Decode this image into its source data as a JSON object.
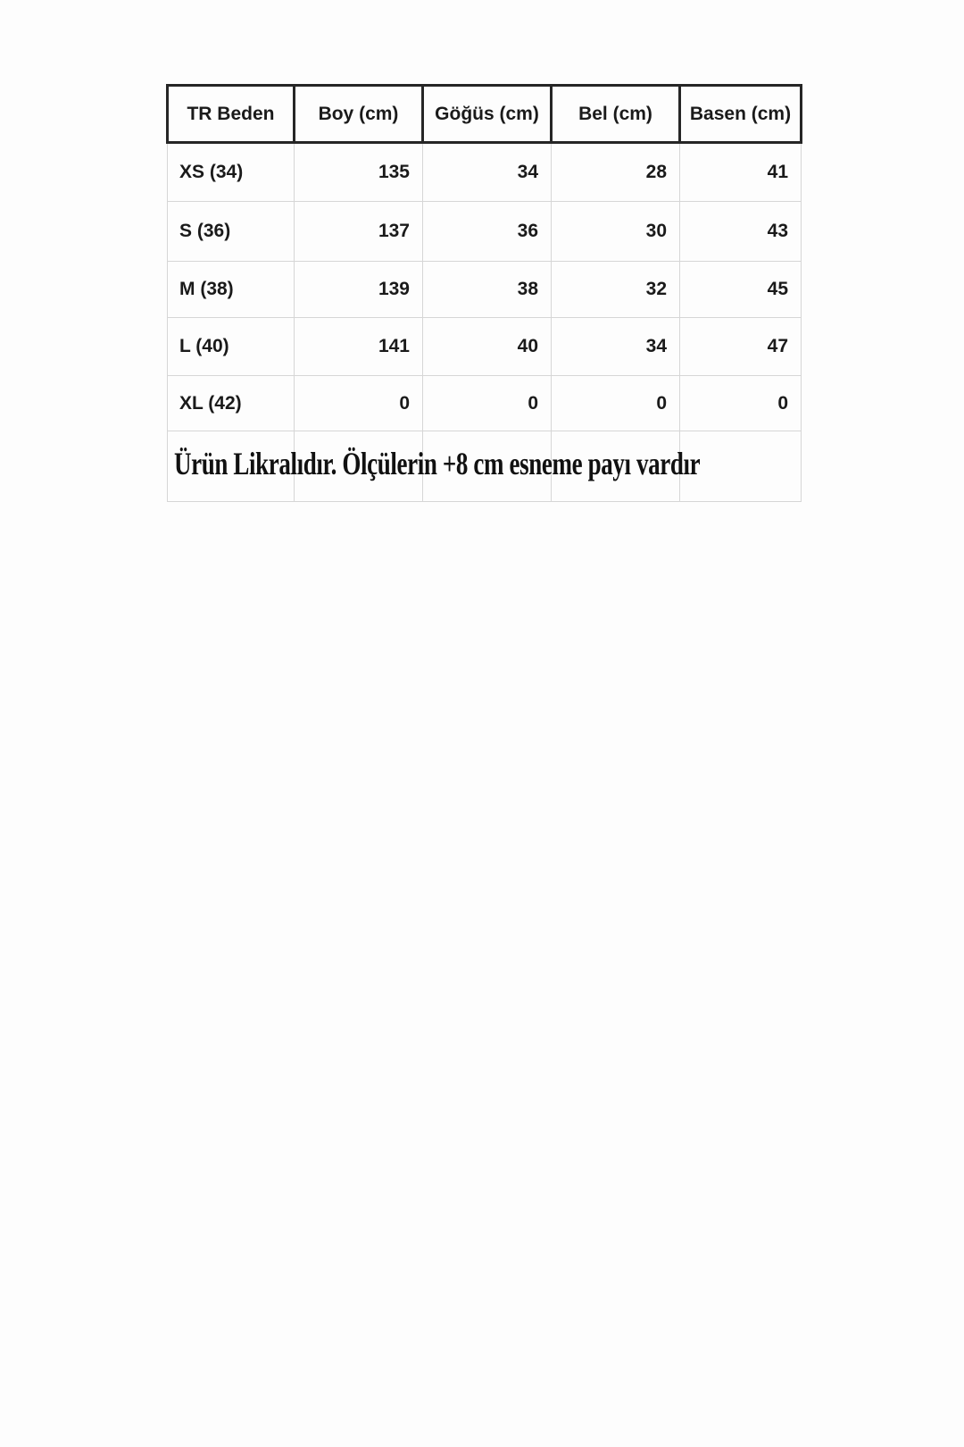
{
  "page": {
    "background": "#fdfdfd"
  },
  "size_chart": {
    "columns": [
      "TR Beden",
      "Boy (cm)",
      "Göğüs (cm)",
      "Bel (cm)",
      "Basen (cm)"
    ],
    "rows": [
      {
        "label": "XS (34)",
        "values": [
          "135",
          "34",
          "28",
          "41"
        ]
      },
      {
        "label": "S (36)",
        "values": [
          "137",
          "36",
          "30",
          "43"
        ]
      },
      {
        "label": "M (38)",
        "values": [
          "139",
          "38",
          "32",
          "45"
        ]
      },
      {
        "label": "L (40)",
        "values": [
          "141",
          "40",
          "34",
          "47"
        ]
      },
      {
        "label": "XL (42)",
        "values": [
          "0",
          "0",
          "0",
          "0"
        ]
      }
    ],
    "note": "Ürün Likralıdır. Ölçülerin +8 cm esneme payı vardır",
    "colors": {
      "header_border": "#262626",
      "grid_border": "#d6d6d6",
      "text": "#1a1a1a",
      "note_text": "#111111"
    }
  }
}
